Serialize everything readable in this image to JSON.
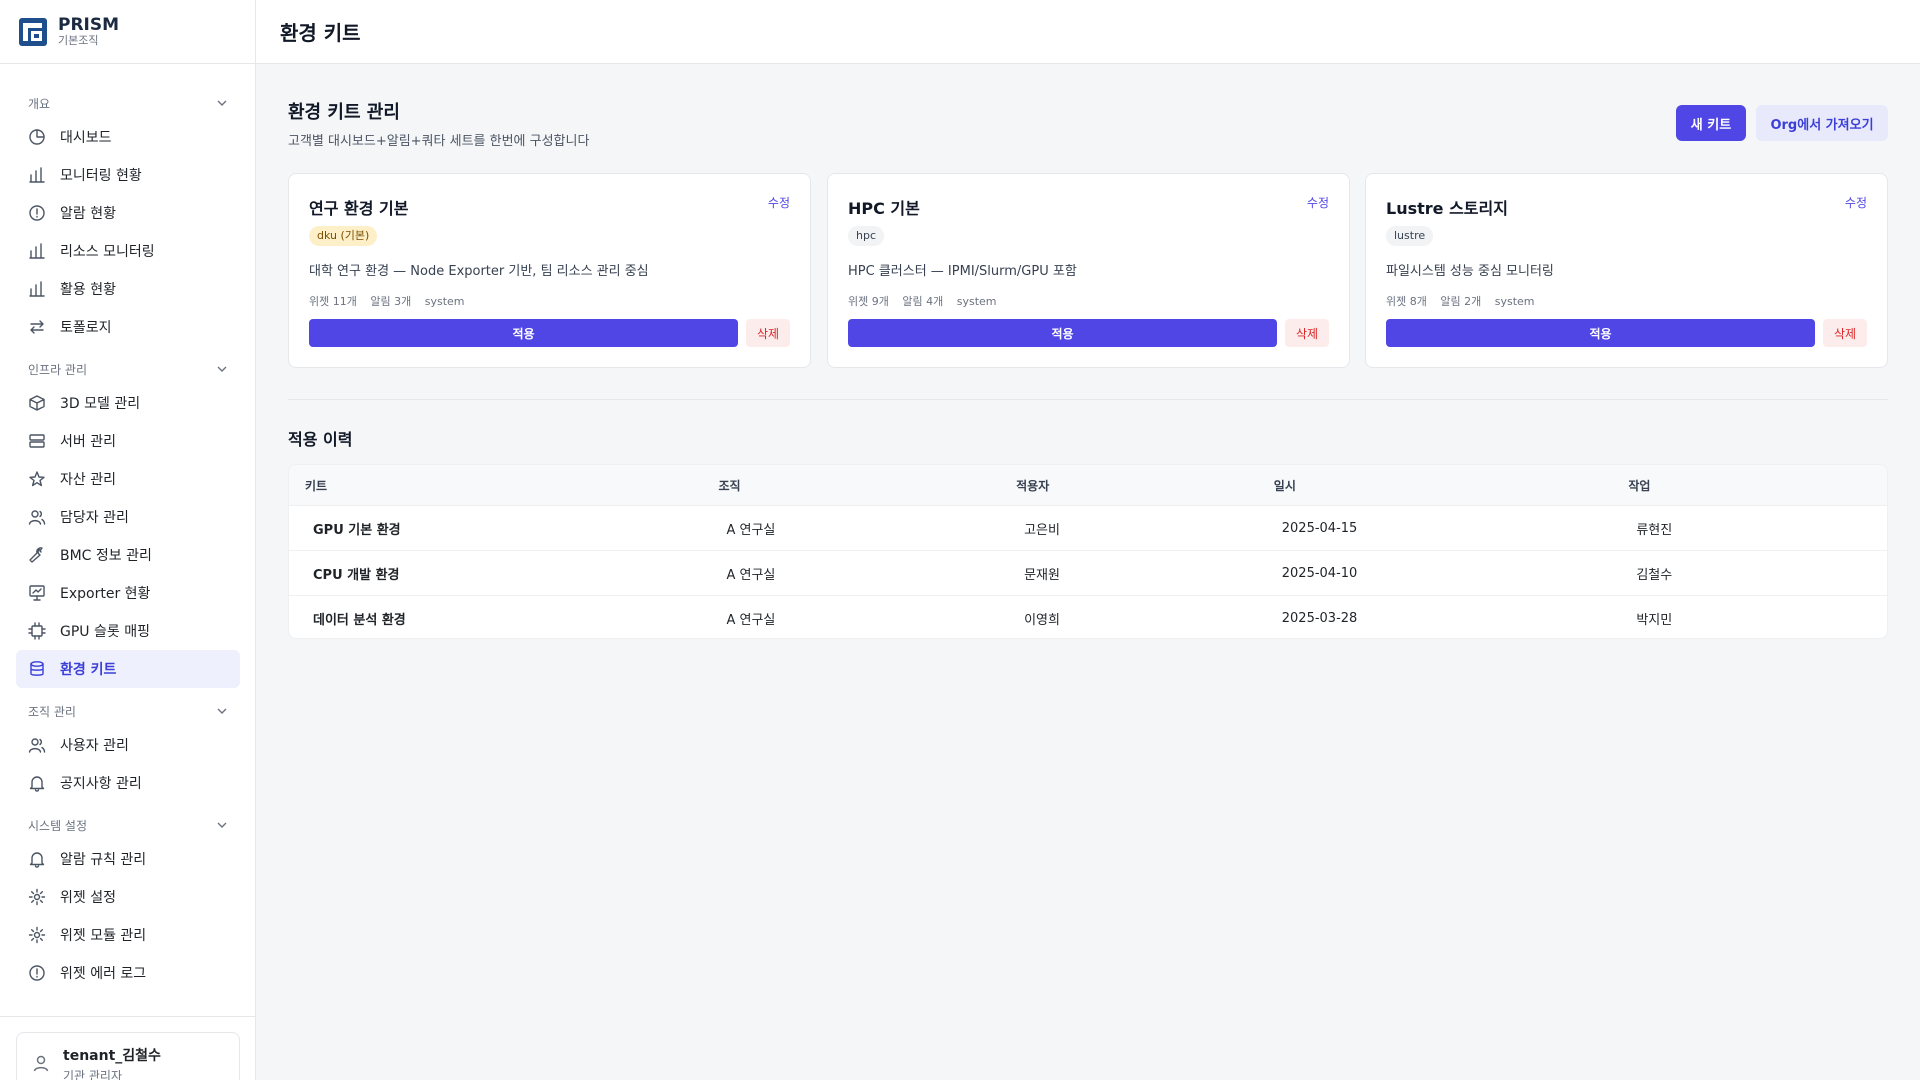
{
  "brand": {
    "name": "PRISM",
    "sub": "기본조직"
  },
  "topbar": {
    "title": "환경 키트"
  },
  "nav": {
    "groups": [
      {
        "label": "개요",
        "items": [
          {
            "label": "대시보드",
            "icon": "pie-chart-icon"
          },
          {
            "label": "모니터링 현황",
            "icon": "bar-chart-icon"
          },
          {
            "label": "알람 현황",
            "icon": "alert-circle-icon"
          },
          {
            "label": "리소스 모니터링",
            "icon": "bar-chart-icon"
          },
          {
            "label": "활용 현황",
            "icon": "bar-chart-icon"
          },
          {
            "label": "토폴로지",
            "icon": "arrows-icon"
          }
        ]
      },
      {
        "label": "인프라 관리",
        "items": [
          {
            "label": "3D 모델 관리",
            "icon": "cube-icon"
          },
          {
            "label": "서버 관리",
            "icon": "server-icon"
          },
          {
            "label": "자산 관리",
            "icon": "star-icon"
          },
          {
            "label": "담당자 관리",
            "icon": "users-icon"
          },
          {
            "label": "BMC 정보 관리",
            "icon": "wrench-icon"
          },
          {
            "label": "Exporter 현황",
            "icon": "monitor-icon"
          },
          {
            "label": "GPU 슬롯 매핑",
            "icon": "chip-icon"
          },
          {
            "label": "환경 키트",
            "icon": "database-icon"
          }
        ]
      },
      {
        "label": "조직 관리",
        "items": [
          {
            "label": "사용자 관리",
            "icon": "users-icon"
          },
          {
            "label": "공지사항 관리",
            "icon": "bell-icon"
          }
        ]
      },
      {
        "label": "시스템 설정",
        "items": [
          {
            "label": "알람 규칙 관리",
            "icon": "bell-icon"
          },
          {
            "label": "위젯 설정",
            "icon": "gear-icon"
          },
          {
            "label": "위젯 모듈 관리",
            "icon": "gear-icon"
          },
          {
            "label": "위젯 에러 로그",
            "icon": "alert-circle-icon"
          }
        ]
      }
    ]
  },
  "user": {
    "name": "tenant_김철수",
    "role": "기관 관리자"
  },
  "page": {
    "title": "환경 키트 관리",
    "subtitle": "고객별 대시보드+알림+쿼타 세트를 한번에 구성합니다",
    "new_kit_label": "새 키트",
    "import_label": "Org에서 가져오기"
  },
  "cards": [
    {
      "title": "연구 환경 기본",
      "tag": "dku (기본)",
      "tag_style": "warn",
      "desc": "대학 연구 환경 — Node Exporter 기반, 팀 리소스 관리 중심",
      "widgets": "위젯 11개",
      "alarms": "알림 3개",
      "owner": "system",
      "edit": "수정",
      "apply": "적용",
      "delete": "삭제"
    },
    {
      "title": "HPC 기본",
      "tag": "hpc",
      "tag_style": "plain",
      "desc": "HPC 클러스터 — IPMI/Slurm/GPU 포함",
      "widgets": "위젯 9개",
      "alarms": "알림 4개",
      "owner": "system",
      "edit": "수정",
      "apply": "적용",
      "delete": "삭제"
    },
    {
      "title": "Lustre 스토리지",
      "tag": "lustre",
      "tag_style": "plain",
      "desc": "파일시스템 성능 중심 모니터링",
      "widgets": "위젯 8개",
      "alarms": "알림 2개",
      "owner": "system",
      "edit": "수정",
      "apply": "적용",
      "delete": "삭제"
    }
  ],
  "history": {
    "title": "적용 이력",
    "columns": [
      "키트",
      "조직",
      "적용자",
      "일시",
      "작업"
    ],
    "rows": [
      [
        "GPU 기본 환경",
        "A 연구실",
        "고은비",
        "2025-04-15",
        "류현진"
      ],
      [
        "CPU 개발 환경",
        "A 연구실",
        "문재원",
        "2025-04-10",
        "김철수"
      ],
      [
        "데이터 분석 환경",
        "A 연구실",
        "이영희",
        "2025-03-28",
        "박지민"
      ]
    ]
  },
  "colors": {
    "accent": "#4f46e5",
    "danger": "#dc2626",
    "warn_tag_bg": "#fdf0c8"
  }
}
